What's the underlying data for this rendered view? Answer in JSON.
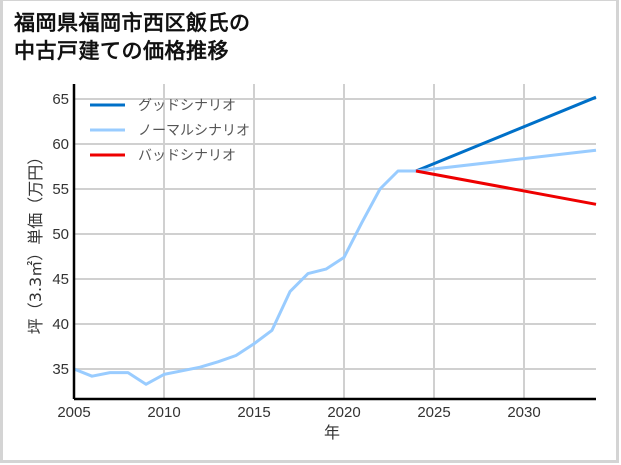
{
  "title_line1": "福岡県福岡市西区飯氏の",
  "title_line2": "中古戸建ての価格推移",
  "chart_data": {
    "type": "line",
    "title": "福岡県福岡市西区飯氏の中古戸建ての価格推移",
    "xlabel": "年",
    "ylabel": "坪（3.3㎡）単価（万円）",
    "xlim": [
      2005,
      2034
    ],
    "ylim": [
      31.7,
      66.7
    ],
    "x_ticks": [
      2005,
      2010,
      2015,
      2020,
      2025,
      2030
    ],
    "y_ticks": [
      35,
      40,
      45,
      50,
      55,
      60,
      65
    ],
    "grid": true,
    "legend_position": "upper left",
    "series": [
      {
        "name": "ノーマルシナリオ",
        "role": "historical",
        "color": "#99ccff",
        "x": [
          2005,
          2006,
          2007,
          2008,
          2009,
          2010,
          2011,
          2012,
          2013,
          2014,
          2015,
          2016,
          2017,
          2018,
          2019,
          2020,
          2021,
          2022,
          2023,
          2024
        ],
        "values": [
          35.0,
          34.2,
          34.6,
          34.6,
          33.3,
          34.4,
          34.8,
          35.2,
          35.8,
          36.5,
          37.8,
          39.3,
          43.6,
          45.6,
          46.1,
          47.4,
          51.3,
          55.0,
          57.0,
          57.0
        ]
      },
      {
        "name": "グッドシナリオ",
        "color": "#0070c8",
        "x": [
          2024,
          2034
        ],
        "values": [
          57.0,
          65.2
        ]
      },
      {
        "name": "ノーマルシナリオ",
        "color": "#99ccff",
        "x": [
          2024,
          2034
        ],
        "values": [
          57.0,
          59.3
        ]
      },
      {
        "name": "バッドシナリオ",
        "color": "#ee0000",
        "x": [
          2024,
          2034
        ],
        "values": [
          57.0,
          53.3
        ]
      }
    ]
  },
  "legend": [
    {
      "label": "グッドシナリオ",
      "color": "#0070c8"
    },
    {
      "label": "ノーマルシナリオ",
      "color": "#99ccff"
    },
    {
      "label": "バッドシナリオ",
      "color": "#ee0000"
    }
  ]
}
